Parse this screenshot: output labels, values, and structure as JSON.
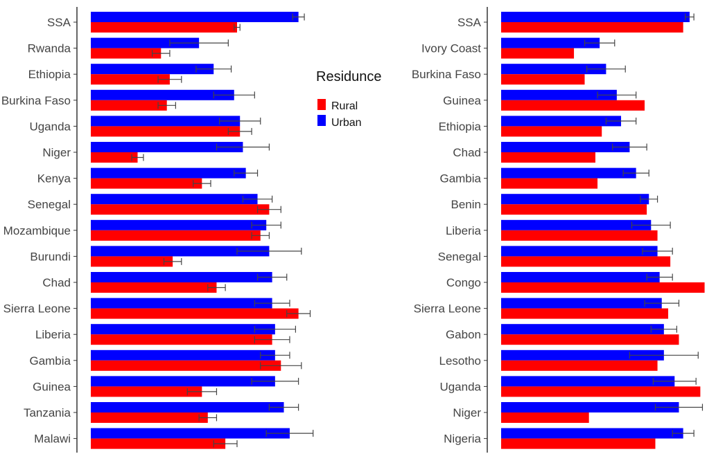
{
  "legend": {
    "title": "Residunce",
    "items": [
      {
        "label": "Rural",
        "color": "#ff0000"
      },
      {
        "label": "Urban",
        "color": "#0000ff"
      }
    ]
  },
  "colors": {
    "rural": "#ff0000",
    "urban": "#0000ff",
    "axis": "#333333",
    "error_bar": "#444444"
  },
  "chart_data": [
    {
      "type": "bar",
      "orientation": "horizontal",
      "categories": [
        "SSA",
        "Rwanda",
        "Ethiopia",
        "Burkina Faso",
        "Uganda",
        "Niger",
        "Kenya",
        "Senegal",
        "Mozambique",
        "Burundi",
        "Chad",
        "Sierra Leone",
        "Liberia",
        "Gambia",
        "Guinea",
        "Tanzania",
        "Malawi"
      ],
      "series": [
        {
          "name": "Urban",
          "values": [
            0.71,
            0.37,
            0.42,
            0.49,
            0.51,
            0.52,
            0.53,
            0.57,
            0.6,
            0.61,
            0.62,
            0.62,
            0.63,
            0.63,
            0.63,
            0.66,
            0.68
          ],
          "error": [
            0.02,
            0.1,
            0.06,
            0.07,
            0.07,
            0.09,
            0.04,
            0.05,
            0.05,
            0.11,
            0.05,
            0.06,
            0.07,
            0.05,
            0.08,
            0.05,
            0.08
          ]
        },
        {
          "name": "Rural",
          "values": [
            0.5,
            0.24,
            0.27,
            0.26,
            0.51,
            0.16,
            0.38,
            0.61,
            0.58,
            0.28,
            0.43,
            0.71,
            0.62,
            0.65,
            0.38,
            0.4,
            0.46
          ],
          "error": [
            0.01,
            0.03,
            0.04,
            0.03,
            0.04,
            0.02,
            0.03,
            0.04,
            0.03,
            0.03,
            0.03,
            0.04,
            0.06,
            0.07,
            0.05,
            0.03,
            0.04
          ]
        }
      ],
      "xlim": [
        0,
        0.8
      ]
    },
    {
      "type": "bar",
      "orientation": "horizontal",
      "categories": [
        "SSA",
        "Ivory Coast",
        "Burkina Faso",
        "Guinea",
        "Ethiopia",
        "Chad",
        "Gambia",
        "Benin",
        "Liberia",
        "Senegal",
        "Congo",
        "Sierra Leone",
        "Gabon",
        "Lesotho",
        "Uganda",
        "Niger",
        "Nigeria"
      ],
      "series": [
        {
          "name": "Urban",
          "values": [
            0.88,
            0.46,
            0.49,
            0.54,
            0.56,
            0.6,
            0.63,
            0.69,
            0.7,
            0.73,
            0.74,
            0.75,
            0.76,
            0.76,
            0.81,
            0.83,
            0.85
          ],
          "error": [
            0.02,
            0.07,
            0.09,
            0.09,
            0.07,
            0.08,
            0.06,
            0.04,
            0.09,
            0.07,
            0.06,
            0.08,
            0.06,
            0.16,
            0.1,
            0.11,
            0.05
          ]
        },
        {
          "name": "Rural",
          "values": [
            0.85,
            0.34,
            0.39,
            0.67,
            0.47,
            0.44,
            0.45,
            0.68,
            0.73,
            0.79,
            0.95,
            0.78,
            0.83,
            0.73,
            0.93,
            0.41,
            0.72
          ]
        }
      ],
      "xlim": [
        0,
        1.0
      ]
    }
  ]
}
